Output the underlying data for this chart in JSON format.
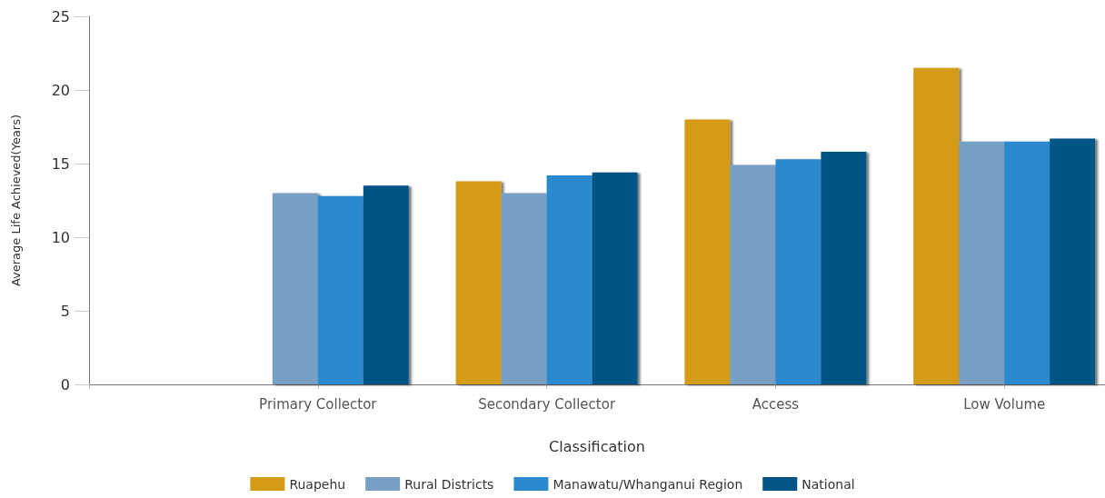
{
  "chart_data": {
    "type": "bar",
    "xlabel": "Classification",
    "ylabel": "Average Life Achieved(Years)",
    "categories": [
      null,
      "Primary Collector",
      "Secondary Collector",
      "Access",
      "Low Volume"
    ],
    "series": [
      {
        "name": "Ruapehu",
        "color": "#d59b17",
        "values": [
          null,
          null,
          13.8,
          18.0,
          21.5
        ]
      },
      {
        "name": "Rural Districts",
        "color": "#789fc4",
        "values": [
          null,
          13.0,
          13.0,
          14.9,
          16.5
        ]
      },
      {
        "name": "Manawatu/Whanganui Region",
        "color": "#2a8acd",
        "values": [
          null,
          12.8,
          14.2,
          15.3,
          16.5
        ]
      },
      {
        "name": "National",
        "color": "#035487",
        "values": [
          null,
          13.5,
          14.4,
          15.8,
          16.7
        ]
      }
    ],
    "ylim": [
      0,
      25
    ],
    "yticks": [
      0,
      5,
      10,
      15,
      20,
      25
    ],
    "grid": false,
    "legend": "bottom"
  }
}
